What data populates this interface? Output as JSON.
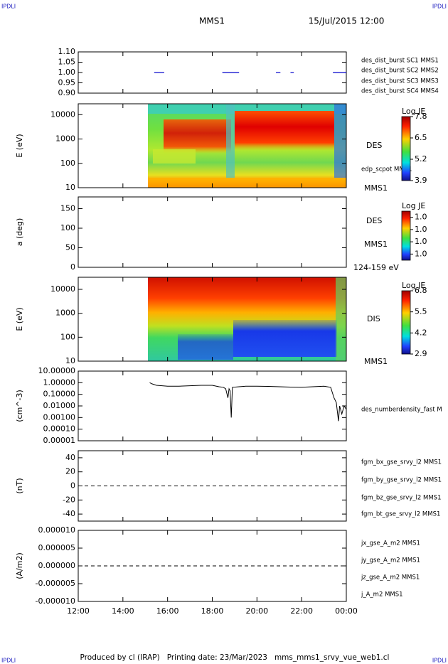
{
  "header": {
    "corner_tl": "IPDLI",
    "corner_tr": "IPDLI",
    "corner_bl": "IPDLI",
    "corner_br": "IPDLI",
    "title": "MMS1",
    "date": "15/Jul/2015 12:00"
  },
  "footer": "Produced by cl (IRAP)   Printing date: 23/Mar/2023   mms_mms1_srvy_vue_web1.cl",
  "chart_data": [
    {
      "type": "timeline",
      "ylim": [
        0.9,
        1.1
      ],
      "yticks": [
        {
          "value": 0.9,
          "label": "0.90"
        },
        {
          "value": 0.95,
          "label": "0.95"
        },
        {
          "value": 1.0,
          "label": "1.00"
        },
        {
          "value": 1.05,
          "label": "1.05"
        },
        {
          "value": 1.1,
          "label": "1.10"
        }
      ],
      "series": [
        {
          "name": "des_dist_burst SC1 MMS1",
          "color": "#0000cc",
          "y": 1.0,
          "intervals": [
            [
              15.4,
              15.85
            ],
            [
              18.45,
              19.2
            ],
            [
              20.85,
              21.05
            ],
            [
              21.5,
              21.65
            ],
            [
              23.4,
              24
            ]
          ]
        },
        {
          "name": "des_dist_burst SC2 MMS2",
          "color": "#cc00cc",
          "y": 1.0,
          "intervals": []
        },
        {
          "name": "des_dist_burst SC3 MMS3",
          "color": "#dd0000",
          "y": 1.0,
          "intervals": []
        },
        {
          "name": "des_dist_burst SC4 MMS4",
          "color": "#00bb00",
          "y": 1.0,
          "intervals": []
        }
      ]
    },
    {
      "type": "spectrogram",
      "ylabel": "E (eV)",
      "log": true,
      "ylim": [
        10,
        28000
      ],
      "yticks": [
        10,
        100,
        1000,
        10000
      ],
      "colorbar": {
        "title": "Log JE",
        "lim": [
          3.9,
          7.8
        ],
        "ticks": [
          3.9,
          5.2,
          6.5,
          7.8
        ]
      },
      "annotations": [
        "DES",
        "edp_scpot MMS1",
        "MMS1"
      ]
    },
    {
      "type": "spectrogram",
      "ylabel": "a (deg)",
      "log": false,
      "ylim": [
        0,
        180
      ],
      "yticks": [
        0,
        50,
        100,
        150
      ],
      "colorbar": {
        "title": "Log JE",
        "lim": [
          0.96,
          1.04
        ],
        "ticks": [
          {
            "value": 0.97,
            "label": "1.0"
          },
          {
            "value": 0.99,
            "label": "1.0"
          },
          {
            "value": 1.01,
            "label": "1.0"
          },
          {
            "value": 1.03,
            "label": "1.0"
          }
        ]
      },
      "annotations": [
        "DES",
        "MMS1",
        "124-159 eV"
      ]
    },
    {
      "type": "spectrogram",
      "ylabel": "E (eV)",
      "log": true,
      "ylim": [
        10,
        32000
      ],
      "yticks": [
        10,
        100,
        1000,
        10000
      ],
      "colorbar": {
        "title": "Log JE",
        "lim": [
          2.9,
          6.8
        ],
        "ticks": [
          2.9,
          4.2,
          5.5,
          6.8
        ]
      },
      "annotations": [
        "DIS",
        "MMS1"
      ]
    },
    {
      "type": "line",
      "ylabel": "(cm^-3)",
      "log": true,
      "ylim": [
        1e-05,
        10
      ],
      "yticks": [
        {
          "value": 10,
          "label": "10.00000"
        },
        {
          "value": 1,
          "label": "1.00000"
        },
        {
          "value": 0.1,
          "label": "0.10000"
        },
        {
          "value": 0.01,
          "label": "0.01000"
        },
        {
          "value": 0.001,
          "label": "0.00100"
        },
        {
          "value": 0.0001,
          "label": "0.00010"
        },
        {
          "value": 1e-05,
          "label": "0.00001"
        }
      ],
      "series": [
        {
          "name": "des_numberdensity_fast M",
          "color": "#000000",
          "x": [
            15.2,
            15.3,
            15.5,
            16,
            16.5,
            17,
            17.5,
            18,
            18.3,
            18.5,
            18.6,
            18.7,
            18.75,
            18.8,
            18.85,
            18.9,
            19.2,
            19.5,
            20,
            20.5,
            21,
            21.5,
            22,
            22.5,
            23,
            23.3,
            23.45,
            23.55,
            23.65,
            23.7,
            23.8,
            23.9,
            24
          ],
          "values": [
            1.0,
            0.8,
            0.6,
            0.5,
            0.5,
            0.55,
            0.6,
            0.6,
            0.45,
            0.4,
            0.3,
            0.05,
            0.3,
            0.2,
            0.001,
            0.4,
            0.45,
            0.5,
            0.5,
            0.48,
            0.45,
            0.42,
            0.4,
            0.45,
            0.5,
            0.4,
            0.05,
            0.02,
            0.0005,
            0.01,
            0.002,
            0.01,
            0.005
          ]
        }
      ]
    },
    {
      "type": "line",
      "ylabel": "(nT)",
      "log": false,
      "ylim": [
        -50,
        50
      ],
      "yticks": [
        40,
        20,
        0,
        -20,
        -40
      ],
      "zero_line": "dashed",
      "series": [
        {
          "name": "fgm_bx_gse_srvy_l2 MMS1",
          "color": "#dd0000"
        },
        {
          "name": "fgm_by_gse_srvy_l2 MMS1",
          "color": "#00bb00"
        },
        {
          "name": "fgm_bz_gse_srvy_l2 MMS1",
          "color": "#0000cc"
        },
        {
          "name": "fgm_bt_gse_srvy_l2 MMS1",
          "color": "#000000"
        }
      ]
    },
    {
      "type": "line",
      "ylabel": "(A/m2)",
      "log": false,
      "ylim": [
        -1e-05,
        1e-05
      ],
      "yticks": [
        {
          "value": 1e-05,
          "label": "0.000010"
        },
        {
          "value": 5e-06,
          "label": "0.000005"
        },
        {
          "value": 0,
          "label": "0.000000"
        },
        {
          "value": -5e-06,
          "label": "-0.000005"
        },
        {
          "value": -1e-05,
          "label": "-0.000010"
        }
      ],
      "zero_line": "dashed",
      "series": [
        {
          "name": "jx_gse_A_m2 MMS1",
          "color": "#dd0000"
        },
        {
          "name": "jy_gse_A_m2 MMS1",
          "color": "#00bb00"
        },
        {
          "name": "jz_gse_A_m2 MMS1",
          "color": "#0000cc"
        },
        {
          "name": "j_A_m2 MMS1",
          "color": "#000000"
        }
      ],
      "xlim": [
        12,
        24
      ],
      "xticks": [
        {
          "value": 12,
          "label": "12:00"
        },
        {
          "value": 14,
          "label": "14:00"
        },
        {
          "value": 16,
          "label": "16:00"
        },
        {
          "value": 18,
          "label": "18:00"
        },
        {
          "value": 20,
          "label": "20:00"
        },
        {
          "value": 22,
          "label": "22:00"
        },
        {
          "value": 24,
          "label": "00:00"
        }
      ]
    }
  ]
}
